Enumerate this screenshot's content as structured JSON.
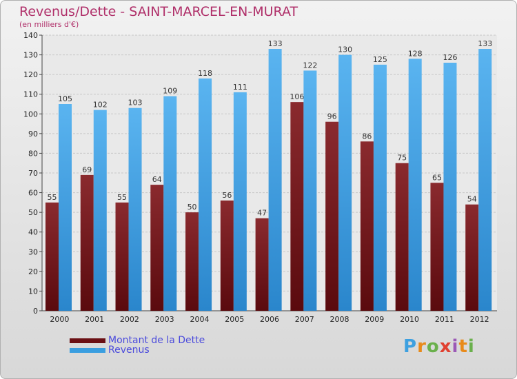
{
  "chart_data": {
    "type": "bar",
    "title": "Revenus/Dette - SAINT-MARCEL-EN-MURAT",
    "subtitle": "(en milliers d'€)",
    "categories": [
      "2000",
      "2001",
      "2002",
      "2003",
      "2004",
      "2005",
      "2006",
      "2007",
      "2008",
      "2009",
      "2010",
      "2011",
      "2012"
    ],
    "series": [
      {
        "name": "Montant de la Dette",
        "color": "#7a1a1e",
        "values": [
          55,
          69,
          55,
          64,
          50,
          56,
          47,
          106,
          96,
          86,
          75,
          65,
          54
        ]
      },
      {
        "name": "Revenus",
        "color": "#3a9ee0",
        "values": [
          105,
          102,
          103,
          109,
          118,
          111,
          133,
          122,
          130,
          125,
          128,
          126,
          133
        ]
      }
    ],
    "ylim": [
      0,
      140
    ],
    "yticks": [
      0,
      10,
      20,
      30,
      40,
      50,
      60,
      70,
      80,
      90,
      100,
      110,
      120,
      130,
      140
    ],
    "grid": true,
    "legend_position": "bottom-left"
  },
  "logo": {
    "letters": [
      "P",
      "r",
      "o",
      "x",
      "i",
      "t",
      "i"
    ]
  }
}
